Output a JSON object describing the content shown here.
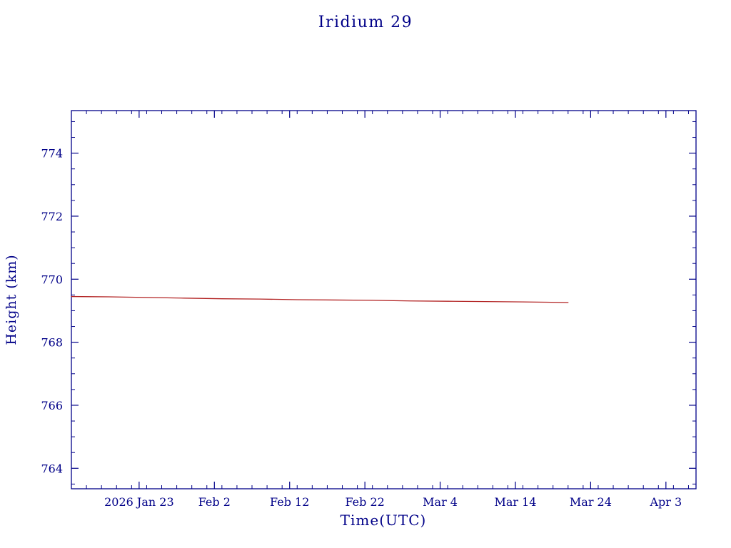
{
  "page": {
    "title": "Iridium 29"
  },
  "chart_data": {
    "type": "line",
    "title": "Iridium 29",
    "xlabel": "Time(UTC)",
    "ylabel": "Height (km)",
    "axis_color": "#000088",
    "text_color": "#000088",
    "line_color": "#b22222",
    "grid": false,
    "legend": "none",
    "xlim": [
      0,
      83
    ],
    "ylim": [
      763.35,
      775.35
    ],
    "x_tick_day_zero": "2026 Jan 14",
    "x_ticks": [
      {
        "pos": 9,
        "label": "2026 Jan 23"
      },
      {
        "pos": 19,
        "label": "Feb 2"
      },
      {
        "pos": 29,
        "label": "Feb 12"
      },
      {
        "pos": 39,
        "label": "Feb 22"
      },
      {
        "pos": 49,
        "label": "Mar 4"
      },
      {
        "pos": 59,
        "label": "Mar 14"
      },
      {
        "pos": 69,
        "label": "Mar 24"
      },
      {
        "pos": 79,
        "label": "Apr 3"
      }
    ],
    "y_ticks": [
      764,
      766,
      768,
      770,
      772,
      774
    ],
    "x_minor_step": 2,
    "y_minor_step": 0.5,
    "series": [
      {
        "name": "height_km",
        "x": [
          0,
          5,
          10,
          15,
          20,
          25,
          30,
          35,
          40,
          45,
          50,
          55,
          60,
          63,
          66
        ],
        "y": [
          769.45,
          769.44,
          769.42,
          769.4,
          769.38,
          769.37,
          769.35,
          769.34,
          769.33,
          769.31,
          769.3,
          769.29,
          769.28,
          769.27,
          769.26
        ]
      }
    ]
  }
}
